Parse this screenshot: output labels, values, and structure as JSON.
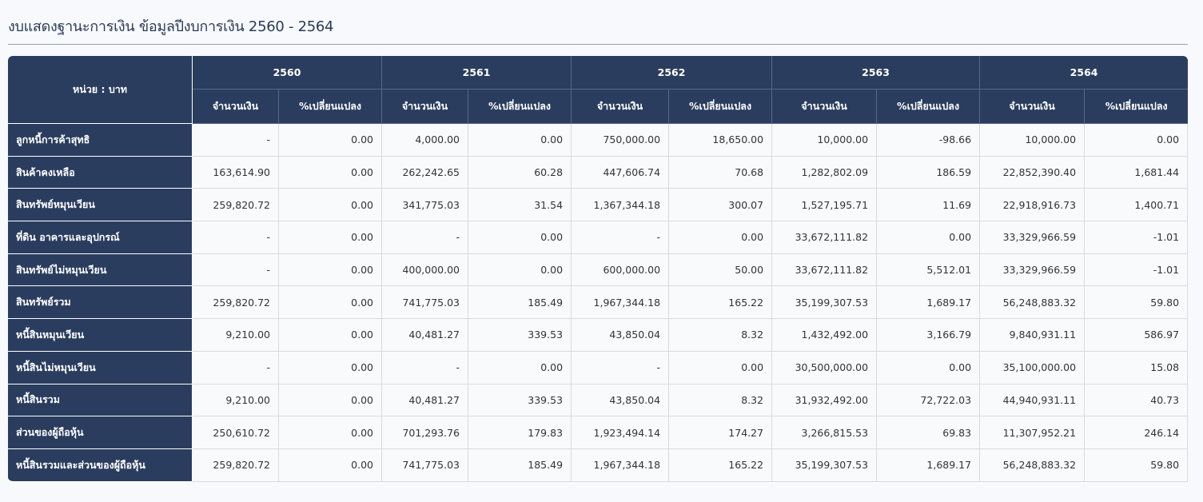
{
  "title": "งบแสดงฐานะการเงิน ข้อมูลปีงบการเงิน 2560 - 2564",
  "table": {
    "unit_label": "หน่วย : บาท",
    "years": [
      "2560",
      "2561",
      "2562",
      "2563",
      "2564"
    ],
    "sub_headers": {
      "amount": "จำนวนเงิน",
      "change": "%เปลี่ยนแปลง"
    },
    "rows": [
      {
        "label": "ลูกหนี้การค้าสุทธิ",
        "values": [
          "-",
          "0.00",
          "4,000.00",
          "0.00",
          "750,000.00",
          "18,650.00",
          "10,000.00",
          "-98.66",
          "10,000.00",
          "0.00"
        ]
      },
      {
        "label": "สินค้าคงเหลือ",
        "values": [
          "163,614.90",
          "0.00",
          "262,242.65",
          "60.28",
          "447,606.74",
          "70.68",
          "1,282,802.09",
          "186.59",
          "22,852,390.40",
          "1,681.44"
        ]
      },
      {
        "label": "สินทรัพย์หมุนเวียน",
        "values": [
          "259,820.72",
          "0.00",
          "341,775.03",
          "31.54",
          "1,367,344.18",
          "300.07",
          "1,527,195.71",
          "11.69",
          "22,918,916.73",
          "1,400.71"
        ]
      },
      {
        "label": "ที่ดิน อาคารและอุปกรณ์",
        "values": [
          "-",
          "0.00",
          "-",
          "0.00",
          "-",
          "0.00",
          "33,672,111.82",
          "0.00",
          "33,329,966.59",
          "-1.01"
        ]
      },
      {
        "label": "สินทรัพย์ไม่หมุนเวียน",
        "values": [
          "-",
          "0.00",
          "400,000.00",
          "0.00",
          "600,000.00",
          "50.00",
          "33,672,111.82",
          "5,512.01",
          "33,329,966.59",
          "-1.01"
        ]
      },
      {
        "label": "สินทรัพย์รวม",
        "values": [
          "259,820.72",
          "0.00",
          "741,775.03",
          "185.49",
          "1,967,344.18",
          "165.22",
          "35,199,307.53",
          "1,689.17",
          "56,248,883.32",
          "59.80"
        ]
      },
      {
        "label": "หนี้สินหมุนเวียน",
        "values": [
          "9,210.00",
          "0.00",
          "40,481.27",
          "339.53",
          "43,850.04",
          "8.32",
          "1,432,492.00",
          "3,166.79",
          "9,840,931.11",
          "586.97"
        ]
      },
      {
        "label": "หนี้สินไม่หมุนเวียน",
        "values": [
          "-",
          "0.00",
          "-",
          "0.00",
          "-",
          "0.00",
          "30,500,000.00",
          "0.00",
          "35,100,000.00",
          "15.08"
        ]
      },
      {
        "label": "หนี้สินรวม",
        "values": [
          "9,210.00",
          "0.00",
          "40,481.27",
          "339.53",
          "43,850.04",
          "8.32",
          "31,932,492.00",
          "72,722.03",
          "44,940,931.11",
          "40.73"
        ]
      },
      {
        "label": "ส่วนของผู้ถือหุ้น",
        "values": [
          "250,610.72",
          "0.00",
          "701,293.76",
          "179.83",
          "1,923,494.14",
          "174.27",
          "3,266,815.53",
          "69.83",
          "11,307,952.21",
          "246.14"
        ]
      },
      {
        "label": "หนี้สินรวมและส่วนของผู้ถือหุ้น",
        "values": [
          "259,820.72",
          "0.00",
          "741,775.03",
          "185.49",
          "1,967,344.18",
          "165.22",
          "35,199,307.53",
          "1,689.17",
          "56,248,883.32",
          "59.80"
        ]
      }
    ]
  },
  "colors": {
    "header_bg": "#2a3d5f",
    "page_bg": "#f7f9fc"
  }
}
